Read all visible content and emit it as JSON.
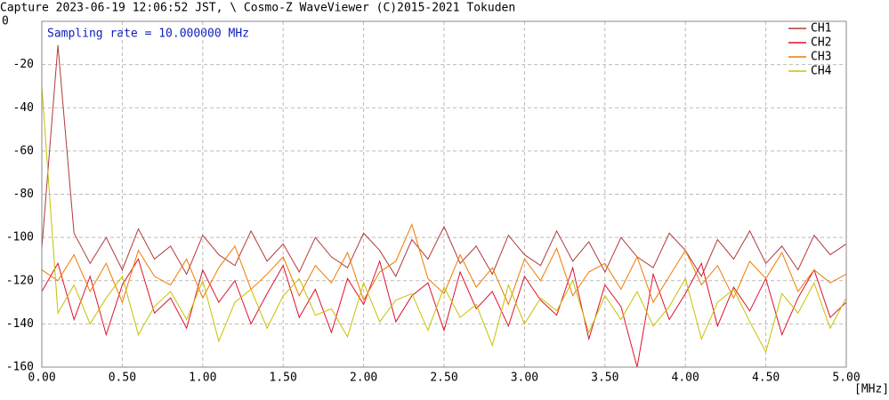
{
  "chart_data": {
    "type": "line",
    "title": "Capture 2023-06-19 12:06:52 JST, \\ Cosmo-Z WaveViewer (C)2015-2021 Tokuden",
    "annotation": "Sampling rate = 10.000000 MHz",
    "x_label": "[MHz]",
    "grid": true,
    "legend": "upper right",
    "xlim": [
      0,
      5
    ],
    "ylim": [
      -160,
      0
    ],
    "xticks": [
      {
        "value": 0,
        "label": "0.00"
      },
      {
        "value": 0.5,
        "label": "0.50"
      },
      {
        "value": 1,
        "label": "1.00"
      },
      {
        "value": 1.5,
        "label": "1.50"
      },
      {
        "value": 2,
        "label": "2.00"
      },
      {
        "value": 2.5,
        "label": "2.50"
      },
      {
        "value": 3,
        "label": "3.00"
      },
      {
        "value": 3.5,
        "label": "3.50"
      },
      {
        "value": 4,
        "label": "4.00"
      },
      {
        "value": 4.5,
        "label": "4.50"
      },
      {
        "value": 5,
        "label": "5.00"
      }
    ],
    "yticks": [
      0,
      -20,
      -40,
      -60,
      -80,
      -100,
      -120,
      -140,
      -160
    ],
    "x": [
      0,
      0.1,
      0.2,
      0.3,
      0.4,
      0.5,
      0.6,
      0.7,
      0.8,
      0.9,
      1.0,
      1.1,
      1.2,
      1.3,
      1.4,
      1.5,
      1.6,
      1.7,
      1.8,
      1.9,
      2.0,
      2.1,
      2.2,
      2.3,
      2.4,
      2.5,
      2.6,
      2.7,
      2.8,
      2.9,
      3.0,
      3.1,
      3.2,
      3.3,
      3.4,
      3.5,
      3.6,
      3.7,
      3.8,
      3.9,
      4.0,
      4.1,
      4.2,
      4.3,
      4.4,
      4.5,
      4.6,
      4.7,
      4.8,
      4.9,
      5.0
    ],
    "series": [
      {
        "name": "CH1",
        "color": "#b03a3a",
        "values": [
          -105,
          -11,
          -98,
          -112,
          -100,
          -115,
          -96,
          -110,
          -104,
          -117,
          -99,
          -108,
          -113,
          -97,
          -111,
          -103,
          -116,
          -100,
          -109,
          -114,
          -98,
          -106,
          -118,
          -101,
          -110,
          -95,
          -112,
          -104,
          -117,
          -99,
          -108,
          -113,
          -97,
          -111,
          -102,
          -116,
          -100,
          -109,
          -114,
          -98,
          -106,
          -118,
          -101,
          -110,
          -97,
          -112,
          -104,
          -115,
          -99,
          -108,
          -103
        ]
      },
      {
        "name": "CH2",
        "color": "#e0102c",
        "values": [
          -125,
          -112,
          -138,
          -118,
          -145,
          -122,
          -110,
          -135,
          -128,
          -142,
          -115,
          -130,
          -120,
          -140,
          -126,
          -113,
          -137,
          -124,
          -144,
          -119,
          -131,
          -111,
          -139,
          -127,
          -121,
          -143,
          -116,
          -133,
          -125,
          -141,
          -118,
          -129,
          -136,
          -114,
          -147,
          -122,
          -132,
          -160,
          -117,
          -138,
          -126,
          -112,
          -141,
          -123,
          -134,
          -119,
          -145,
          -128,
          -115,
          -137,
          -130
        ]
      },
      {
        "name": "CH3",
        "color": "#f07a00",
        "values": [
          -115,
          -120,
          -108,
          -125,
          -112,
          -130,
          -106,
          -118,
          -122,
          -110,
          -128,
          -114,
          -104,
          -124,
          -117,
          -109,
          -127,
          -113,
          -121,
          -107,
          -129,
          -116,
          -111,
          -94,
          -119,
          -126,
          -108,
          -123,
          -114,
          -131,
          -110,
          -120,
          -105,
          -127,
          -116,
          -112,
          -124,
          -109,
          -130,
          -118,
          -106,
          -122,
          -113,
          -128,
          -111,
          -119,
          -107,
          -125,
          -115,
          -121,
          -117
        ]
      },
      {
        "name": "CH4",
        "color": "#c8c000",
        "values": [
          -30,
          -135,
          -122,
          -140,
          -128,
          -118,
          -145,
          -132,
          -125,
          -138,
          -120,
          -148,
          -130,
          -124,
          -142,
          -127,
          -119,
          -136,
          -133,
          -146,
          -121,
          -139,
          -129,
          -126,
          -143,
          -123,
          -137,
          -131,
          -150,
          -122,
          -140,
          -128,
          -134,
          -120,
          -144,
          -127,
          -138,
          -125,
          -141,
          -132,
          -119,
          -147,
          -130,
          -124,
          -139,
          -153,
          -126,
          -135,
          -121,
          -142,
          -128
        ]
      }
    ]
  }
}
